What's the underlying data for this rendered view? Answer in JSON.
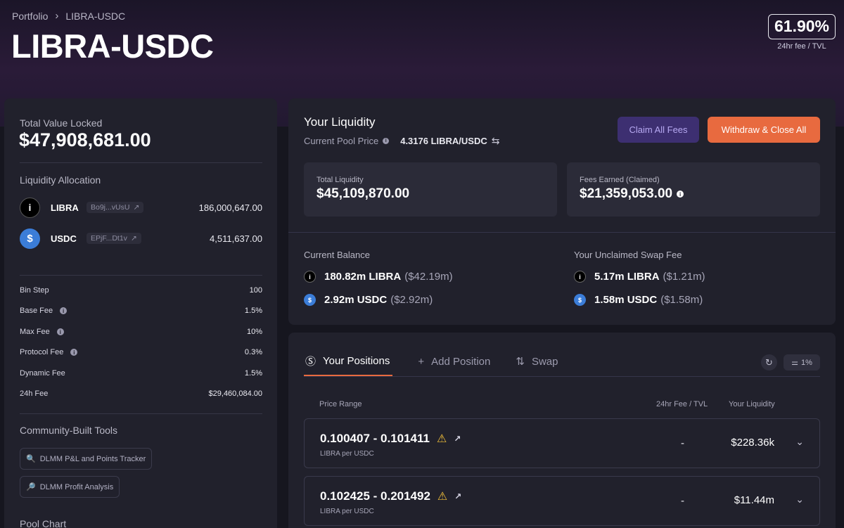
{
  "breadcrumb": {
    "root": "Portfolio",
    "current": "LIBRA-USDC"
  },
  "page_title": "LIBRA-USDC",
  "fee_badge": {
    "value": "61.90%",
    "label": "24hr fee / TVL"
  },
  "left": {
    "tvl_label": "Total Value Locked",
    "tvl_value": "$47,908,681.00",
    "allocation_title": "Liquidity Allocation",
    "tokens": [
      {
        "name": "LIBRA",
        "address": "Bo9j...vUsU",
        "amount": "186,000,647.00",
        "icon": "libra-token-icon"
      },
      {
        "name": "USDC",
        "address": "EPjF...Dt1v",
        "amount": "4,511,637.00",
        "icon": "usdc-token-icon"
      }
    ],
    "params": [
      {
        "label": "Bin Step",
        "value": "100",
        "info": false
      },
      {
        "label": "Base Fee",
        "value": "1.5%",
        "info": true
      },
      {
        "label": "Max Fee",
        "value": "10%",
        "info": true
      },
      {
        "label": "Protocol Fee",
        "value": "0.3%",
        "info": true
      },
      {
        "label": "Dynamic Fee",
        "value": "1.5%",
        "info": false
      },
      {
        "label": "24h Fee",
        "value": "$29,460,084.00",
        "info": false
      }
    ],
    "community_title": "Community-Built Tools",
    "tools": [
      "DLMM P&L and Points Tracker",
      "DLMM Profit Analysis"
    ],
    "pool_chart_title": "Pool Chart"
  },
  "liquidity": {
    "title": "Your Liquidity",
    "pool_price_label": "Current Pool Price",
    "pool_price_value": "4.3176 LIBRA/USDC",
    "claim_button": "Claim All Fees",
    "withdraw_button": "Withdraw & Close All",
    "total_liquidity_label": "Total Liquidity",
    "total_liquidity_value": "$45,109,870.00",
    "fees_earned_label": "Fees Earned (Claimed)",
    "fees_earned_value": "$21,359,053.00",
    "current_balance_title": "Current Balance",
    "current_balance": [
      {
        "amount": "180.82m LIBRA",
        "usd": "($42.19m)"
      },
      {
        "amount": "2.92m USDC",
        "usd": "($2.92m)"
      }
    ],
    "unclaimed_title": "Your Unclaimed Swap Fee",
    "unclaimed": [
      {
        "amount": "5.17m LIBRA",
        "usd": "($1.21m)"
      },
      {
        "amount": "1.58m USDC",
        "usd": "($1.58m)"
      }
    ]
  },
  "positions": {
    "tabs": [
      "Your Positions",
      "Add Position",
      "Swap"
    ],
    "slippage": "1%",
    "headers": {
      "range": "Price Range",
      "fee": "24hr Fee / TVL",
      "liquidity": "Your Liquidity"
    },
    "rows": [
      {
        "range": "0.100407 - 0.101411",
        "unit": "LIBRA per USDC",
        "fee": "-",
        "liquidity": "$228.36k"
      },
      {
        "range": "0.102425 - 0.201492",
        "unit": "LIBRA per USDC",
        "fee": "-",
        "liquidity": "$11.44m"
      }
    ]
  },
  "colors": {
    "accent": "#e86a3f",
    "claim_bg": "#3d2f71",
    "usdc": "#3b7dd8",
    "warning": "#f3c13a"
  }
}
